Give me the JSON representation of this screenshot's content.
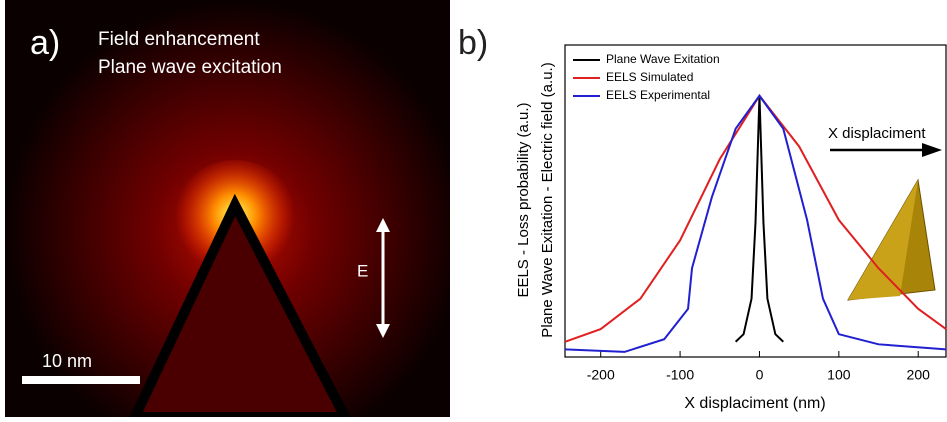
{
  "panel_a": {
    "label": "a)",
    "title": "Field enhancement",
    "subtitle": "Plane wave excitation",
    "field_label": "E",
    "scale_bar": "10 nm"
  },
  "chart_data": {
    "type": "line",
    "label": "b)",
    "xlabel": "X displaciment (nm)",
    "ylabels": [
      "EELS - Loss probability (a.u.)",
      "Plane Wave Exitation - Electric field (a.u.)"
    ],
    "annotation": "X displaciment",
    "xlim": [
      -245,
      235
    ],
    "ylim": [
      -0.03,
      1.2
    ],
    "xticks": [
      -200,
      -100,
      0,
      100,
      200
    ],
    "series": [
      {
        "name": "Plane Wave Exitation",
        "color": "#000000",
        "x": [
          -30,
          -20,
          -10,
          -5,
          0,
          5,
          10,
          20,
          30
        ],
        "values": [
          0.03,
          0.06,
          0.2,
          0.5,
          1,
          0.5,
          0.2,
          0.06,
          0.03
        ]
      },
      {
        "name": "EELS Simulated",
        "color": "#e02020",
        "x": [
          -245,
          -200,
          -150,
          -100,
          -50,
          0,
          50,
          100,
          150,
          200,
          235
        ],
        "values": [
          0.03,
          0.08,
          0.2,
          0.43,
          0.75,
          1,
          0.8,
          0.51,
          0.32,
          0.16,
          0.08
        ]
      },
      {
        "name": "EELS Experimental",
        "color": "#2020d0",
        "x": [
          -245,
          -170,
          -120,
          -90,
          -85,
          -60,
          -30,
          0,
          30,
          60,
          80,
          100,
          150,
          235
        ],
        "values": [
          0,
          -0.01,
          0.04,
          0.16,
          0.32,
          0.6,
          0.87,
          1,
          0.87,
          0.51,
          0.2,
          0.06,
          0.02,
          0
        ]
      }
    ]
  }
}
